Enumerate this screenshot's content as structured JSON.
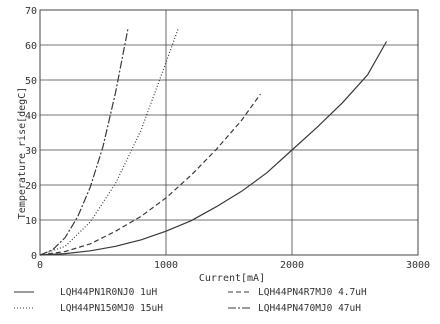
{
  "colors": {
    "line": "#3a3a3a",
    "grid": "#444444",
    "text": "#333333",
    "background": "#ffffff"
  },
  "chart_data": {
    "type": "line",
    "title": "",
    "xlabel": "Current[mA]",
    "ylabel": "Temperature rise[degC]",
    "xlim": [
      0,
      3000
    ],
    "ylim": [
      0,
      70
    ],
    "xticks": [
      0,
      1000,
      2000,
      3000
    ],
    "yticks": [
      0,
      10,
      20,
      30,
      40,
      50,
      60,
      70
    ],
    "grid": true,
    "legend_position": "bottom",
    "series": [
      {
        "name": "LQH44PN1R0NJ0 1uH",
        "style": "solid",
        "x": [
          0,
          200,
          400,
          600,
          800,
          1000,
          1200,
          1400,
          1600,
          1800,
          2000,
          2200,
          2400,
          2600,
          2750
        ],
        "y": [
          0,
          0.4,
          1.2,
          2.5,
          4.3,
          6.8,
          9.8,
          13.8,
          18.2,
          23.5,
          30,
          36.5,
          43.5,
          51.5,
          61
        ]
      },
      {
        "name": "LQH44PN4R7MJ0 4.7uH",
        "style": "dashed",
        "x": [
          0,
          200,
          400,
          600,
          800,
          1000,
          1200,
          1400,
          1600,
          1750
        ],
        "y": [
          0,
          1,
          3.2,
          6.8,
          11,
          16.3,
          22.8,
          30.2,
          38.5,
          46
        ]
      },
      {
        "name": "LQH44PN150MJ0 15uH",
        "style": "dotted",
        "x": [
          0,
          200,
          400,
          600,
          800,
          1000,
          1100
        ],
        "y": [
          0,
          2.5,
          9.5,
          20.5,
          35.5,
          55,
          65
        ]
      },
      {
        "name": "LQH44PN470MJ0 47uH",
        "style": "dashdot",
        "x": [
          0,
          100,
          200,
          300,
          400,
          500,
          600,
          700
        ],
        "y": [
          0,
          1.5,
          5,
          11,
          19.5,
          31,
          46.5,
          65
        ]
      }
    ]
  }
}
